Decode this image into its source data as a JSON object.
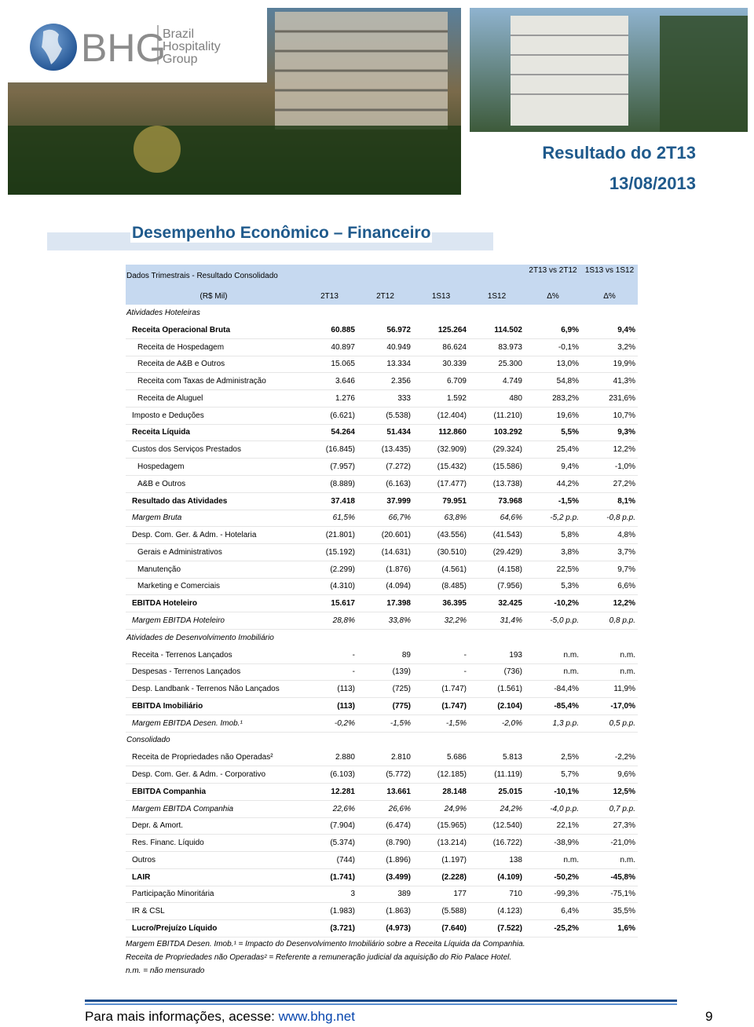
{
  "header": {
    "logo": {
      "mark": "BHG",
      "lines": [
        "Brazil",
        "Hospitality",
        "Group"
      ]
    },
    "title": "Resultado do 2T13",
    "date": "13/08/2013"
  },
  "section_title": "Desempenho Econômico – Financeiro",
  "table": {
    "caption": "Dados Trimestrais - Resultado Consolidado",
    "group_headers": [
      "2T13 vs 2T12",
      "1S13 vs 1S12"
    ],
    "columns": [
      "(R$ Mil)",
      "2T13",
      "2T12",
      "1S13",
      "1S12",
      "Δ%",
      "Δ%"
    ],
    "rows": [
      {
        "style": "section",
        "cells": [
          "Atividades Hoteleiras"
        ]
      },
      {
        "style": "bold",
        "cells": [
          "Receita Operacional Bruta",
          "60.885",
          "56.972",
          "125.264",
          "114.502",
          "6,9%",
          "9,4%"
        ]
      },
      {
        "style": "sub",
        "cells": [
          "Receita de Hospedagem",
          "40.897",
          "40.949",
          "86.624",
          "83.973",
          "-0,1%",
          "3,2%"
        ]
      },
      {
        "style": "sub",
        "cells": [
          "Receita de A&B e Outros",
          "15.065",
          "13.334",
          "30.339",
          "25.300",
          "13,0%",
          "19,9%"
        ]
      },
      {
        "style": "sub",
        "cells": [
          "Receita com Taxas de Administração",
          "3.646",
          "2.356",
          "6.709",
          "4.749",
          "54,8%",
          "41,3%"
        ]
      },
      {
        "style": "sub",
        "cells": [
          "Receita de Aluguel",
          "1.276",
          "333",
          "1.592",
          "480",
          "283,2%",
          "231,6%"
        ]
      },
      {
        "style": "plain",
        "cells": [
          "Imposto e Deduções",
          "(6.621)",
          "(5.538)",
          "(12.404)",
          "(11.210)",
          "19,6%",
          "10,7%"
        ]
      },
      {
        "style": "bold",
        "cells": [
          "Receita Líquida",
          "54.264",
          "51.434",
          "112.860",
          "103.292",
          "5,5%",
          "9,3%"
        ]
      },
      {
        "style": "plain",
        "cells": [
          "Custos dos Serviços Prestados",
          "(16.845)",
          "(13.435)",
          "(32.909)",
          "(29.324)",
          "25,4%",
          "12,2%"
        ]
      },
      {
        "style": "sub",
        "cells": [
          "Hospedagem",
          "(7.957)",
          "(7.272)",
          "(15.432)",
          "(15.586)",
          "9,4%",
          "-1,0%"
        ]
      },
      {
        "style": "sub",
        "cells": [
          "A&B e Outros",
          "(8.889)",
          "(6.163)",
          "(17.477)",
          "(13.738)",
          "44,2%",
          "27,2%"
        ]
      },
      {
        "style": "bold",
        "cells": [
          "Resultado das Atividades",
          "37.418",
          "37.999",
          "79.951",
          "73.968",
          "-1,5%",
          "8,1%"
        ]
      },
      {
        "style": "italic",
        "cells": [
          "Margem Bruta",
          "61,5%",
          "66,7%",
          "63,8%",
          "64,6%",
          "-5,2 p.p.",
          "-0,8 p.p."
        ]
      },
      {
        "style": "plain",
        "cells": [
          "Desp. Com. Ger. & Adm. - Hotelaria",
          "(21.801)",
          "(20.601)",
          "(43.556)",
          "(41.543)",
          "5,8%",
          "4,8%"
        ]
      },
      {
        "style": "sub",
        "cells": [
          "Gerais e Administrativos",
          "(15.192)",
          "(14.631)",
          "(30.510)",
          "(29.429)",
          "3,8%",
          "3,7%"
        ]
      },
      {
        "style": "sub",
        "cells": [
          "Manutenção",
          "(2.299)",
          "(1.876)",
          "(4.561)",
          "(4.158)",
          "22,5%",
          "9,7%"
        ]
      },
      {
        "style": "sub",
        "cells": [
          "Marketing e Comerciais",
          "(4.310)",
          "(4.094)",
          "(8.485)",
          "(7.956)",
          "5,3%",
          "6,6%"
        ]
      },
      {
        "style": "bold",
        "cells": [
          "EBITDA Hoteleiro",
          "15.617",
          "17.398",
          "36.395",
          "32.425",
          "-10,2%",
          "12,2%"
        ]
      },
      {
        "style": "italic",
        "cells": [
          "Margem EBITDA Hoteleiro",
          "28,8%",
          "33,8%",
          "32,2%",
          "31,4%",
          "-5,0 p.p.",
          "0,8 p.p."
        ]
      },
      {
        "style": "section",
        "cells": [
          "Atividades de Desenvolvimento Imobiliário"
        ]
      },
      {
        "style": "plain",
        "cells": [
          "Receita - Terrenos Lançados",
          "-",
          "89",
          "-",
          "193",
          "n.m.",
          "n.m."
        ]
      },
      {
        "style": "plain",
        "cells": [
          "Despesas - Terrenos Lançados",
          "-",
          "(139)",
          "-",
          "(736)",
          "n.m.",
          "n.m."
        ]
      },
      {
        "style": "plain",
        "cells": [
          "Desp. Landbank - Terrenos Não Lançados",
          "(113)",
          "(725)",
          "(1.747)",
          "(1.561)",
          "-84,4%",
          "11,9%"
        ]
      },
      {
        "style": "bold",
        "cells": [
          "EBITDA Imobiliário",
          "(113)",
          "(775)",
          "(1.747)",
          "(2.104)",
          "-85,4%",
          "-17,0%"
        ]
      },
      {
        "style": "italic",
        "cells": [
          "Margem EBITDA Desen. Imob.¹",
          "-0,2%",
          "-1,5%",
          "-1,5%",
          "-2,0%",
          "1,3 p.p.",
          "0,5 p.p."
        ]
      },
      {
        "style": "section",
        "cells": [
          "Consolidado"
        ]
      },
      {
        "style": "plain",
        "cells": [
          "Receita de Propriedades não Operadas²",
          "2.880",
          "2.810",
          "5.686",
          "5.813",
          "2,5%",
          "-2,2%"
        ]
      },
      {
        "style": "plain",
        "cells": [
          "Desp. Com. Ger. & Adm. - Corporativo",
          "(6.103)",
          "(5.772)",
          "(12.185)",
          "(11.119)",
          "5,7%",
          "9,6%"
        ]
      },
      {
        "style": "bold",
        "cells": [
          "EBITDA Companhia",
          "12.281",
          "13.661",
          "28.148",
          "25.015",
          "-10,1%",
          "12,5%"
        ]
      },
      {
        "style": "italic",
        "cells": [
          "Margem EBITDA Companhia",
          "22,6%",
          "26,6%",
          "24,9%",
          "24,2%",
          "-4,0 p.p.",
          "0,7 p.p."
        ]
      },
      {
        "style": "plain",
        "cells": [
          "Depr. & Amort.",
          "(7.904)",
          "(6.474)",
          "(15.965)",
          "(12.540)",
          "22,1%",
          "27,3%"
        ]
      },
      {
        "style": "plain",
        "cells": [
          "Res. Financ. Líquido",
          "(5.374)",
          "(8.790)",
          "(13.214)",
          "(16.722)",
          "-38,9%",
          "-21,0%"
        ]
      },
      {
        "style": "plain",
        "cells": [
          "Outros",
          "(744)",
          "(1.896)",
          "(1.197)",
          "138",
          "n.m.",
          "n.m."
        ]
      },
      {
        "style": "bold",
        "cells": [
          "LAIR",
          "(1.741)",
          "(3.499)",
          "(2.228)",
          "(4.109)",
          "-50,2%",
          "-45,8%"
        ]
      },
      {
        "style": "plain",
        "cells": [
          "Participação Minoritária",
          "3",
          "389",
          "177",
          "710",
          "-99,3%",
          "-75,1%"
        ]
      },
      {
        "style": "plain",
        "cells": [
          "IR & CSL",
          "(1.983)",
          "(1.863)",
          "(5.588)",
          "(4.123)",
          "6,4%",
          "35,5%"
        ]
      },
      {
        "style": "bold",
        "cells": [
          "Lucro/Prejuízo Líquido",
          "(3.721)",
          "(4.973)",
          "(7.640)",
          "(7.522)",
          "-25,2%",
          "1,6%"
        ]
      }
    ]
  },
  "notes": [
    "Margem EBITDA Desen. Imob.¹ = Impacto do Desenvolvimento Imobiliário sobre a Receita Líquida da Companhia.",
    "Receita de Propriedades não Operadas² = Referente a remuneração judicial da aquisição do Rio Palace Hotel.",
    "n.m. = não mensurado"
  ],
  "footer": {
    "text": "Para mais informações, acesse: ",
    "link": "www.bhg.net",
    "page": "9"
  }
}
